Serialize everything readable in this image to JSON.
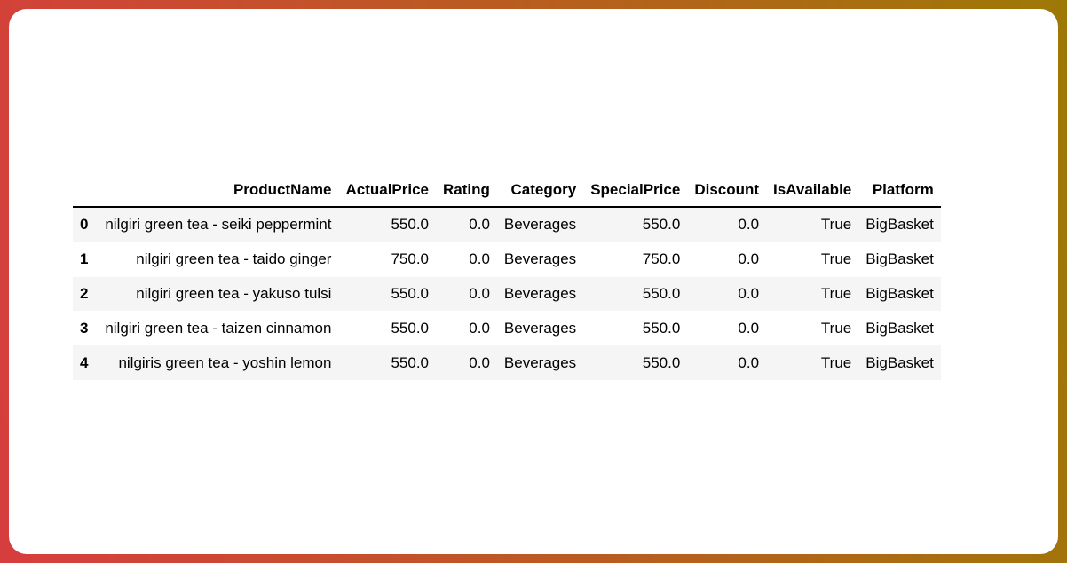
{
  "theme": {
    "gradient_start": "#d73d3e",
    "gradient_end": "#9e7906",
    "card_background": "#ffffff",
    "row_stripe_background": "#f5f5f5",
    "header_rule_color": "#000000",
    "text_color": "#000000"
  },
  "chart_data": {
    "type": "table",
    "index_header": "",
    "index": [
      "0",
      "1",
      "2",
      "3",
      "4"
    ],
    "columns": [
      "ProductName",
      "ActualPrice",
      "Rating",
      "Category",
      "SpecialPrice",
      "Discount",
      "IsAvailable",
      "Platform"
    ],
    "rows": [
      [
        "nilgiri green tea - seiki peppermint",
        "550.0",
        "0.0",
        "Beverages",
        "550.0",
        "0.0",
        "True",
        "BigBasket"
      ],
      [
        "nilgiri green tea - taido ginger",
        "750.0",
        "0.0",
        "Beverages",
        "750.0",
        "0.0",
        "True",
        "BigBasket"
      ],
      [
        "nilgiri green tea - yakuso tulsi",
        "550.0",
        "0.0",
        "Beverages",
        "550.0",
        "0.0",
        "True",
        "BigBasket"
      ],
      [
        "nilgiri green tea - taizen cinnamon",
        "550.0",
        "0.0",
        "Beverages",
        "550.0",
        "0.0",
        "True",
        "BigBasket"
      ],
      [
        "nilgiris green tea - yoshin lemon",
        "550.0",
        "0.0",
        "Beverages",
        "550.0",
        "0.0",
        "True",
        "BigBasket"
      ]
    ]
  }
}
